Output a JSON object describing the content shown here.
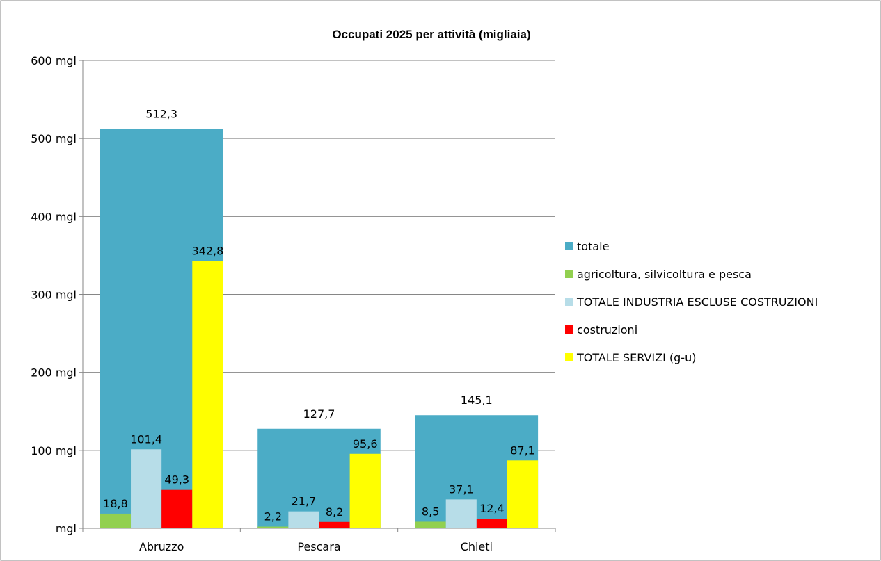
{
  "chart_data": {
    "type": "bar",
    "title": "Occupati 2025 per attività (migliaia)",
    "categories": [
      "Abruzzo",
      "Pescara",
      "Chieti"
    ],
    "ylim": [
      0,
      600
    ],
    "ytick_values": [
      0,
      100,
      200,
      300,
      400,
      500,
      600
    ],
    "ytick_labels": [
      "mgl",
      "100 mgl",
      "200 mgl",
      "300 mgl",
      "400 mgl",
      "500 mgl",
      "600 mgl"
    ],
    "grid": true,
    "legend_position": "right",
    "series": [
      {
        "name": "totale",
        "color": "#4BACC6",
        "values": [
          512.3,
          127.7,
          145.1
        ],
        "labels": [
          "512,3",
          "127,7",
          "145,1"
        ]
      },
      {
        "name": "agricoltura, silvicoltura e pesca",
        "color": "#92D050",
        "values": [
          18.8,
          2.2,
          8.5
        ],
        "labels": [
          "18,8",
          "2,2",
          "8,5"
        ]
      },
      {
        "name": "TOTALE INDUSTRIA ESCLUSE COSTRUZIONI",
        "color": "#B7DDE8",
        "values": [
          101.4,
          21.7,
          37.1
        ],
        "labels": [
          "101,4",
          "21,7",
          "37,1"
        ]
      },
      {
        "name": "costruzioni",
        "color": "#FF0000",
        "values": [
          49.3,
          8.2,
          12.4
        ],
        "labels": [
          "49,3",
          "8,2",
          "12,4"
        ]
      },
      {
        "name": "TOTALE SERVIZI (g-u)",
        "color": "#FFFF00",
        "values": [
          342.8,
          95.6,
          87.1
        ],
        "labels": [
          "342,8",
          "95,6",
          "87,1"
        ]
      }
    ]
  }
}
